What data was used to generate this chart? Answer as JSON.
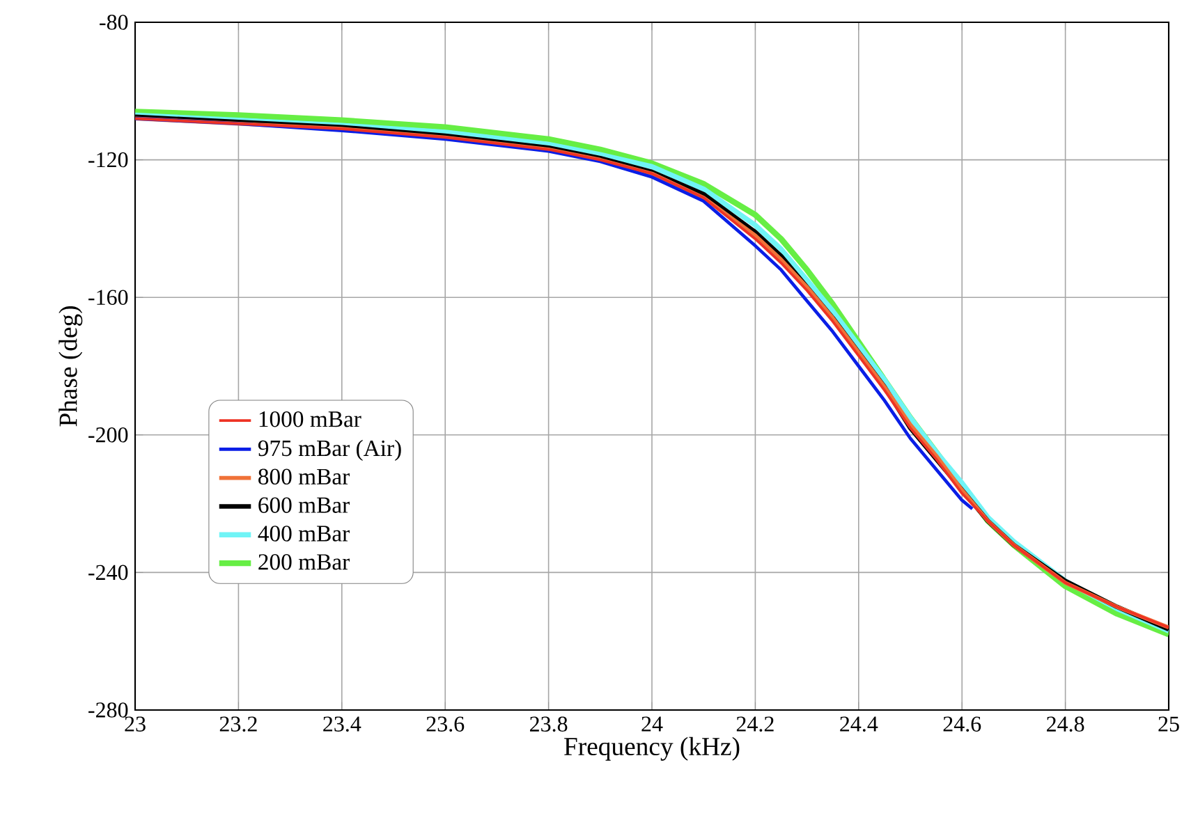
{
  "chart_data": {
    "type": "line",
    "xlabel": "Frequency (kHz)",
    "ylabel": "Phase (deg)",
    "xlim": [
      23,
      25
    ],
    "ylim": [
      -280,
      -80
    ],
    "xticks": [
      23,
      23.2,
      23.4,
      23.6,
      23.8,
      24,
      24.2,
      24.4,
      24.6,
      24.8,
      25
    ],
    "yticks": [
      -280,
      -240,
      -200,
      -160,
      -120,
      -80
    ],
    "grid": true,
    "legend": "bottom left",
    "line_style": "solid",
    "marker": "none",
    "series": [
      {
        "name": "1000 mBar",
        "color": "#ee3324",
        "x": [
          23,
          23.2,
          23.4,
          23.6,
          23.8,
          23.9,
          24.0,
          24.1,
          24.2,
          24.25,
          24.3,
          24.35,
          24.4,
          24.45,
          24.5,
          24.55,
          24.6,
          24.65,
          24.7,
          24.8,
          24.9,
          25
        ],
        "values": [
          -108,
          -109.5,
          -111,
          -113.5,
          -117,
          -120,
          -124,
          -131,
          -143,
          -150,
          -158,
          -167,
          -177,
          -187,
          -198,
          -207,
          -217,
          -225,
          -232,
          -243,
          -250,
          -256
        ]
      },
      {
        "name": "975 mBar (Air)",
        "color": "#0a1ee6",
        "x": [
          23,
          23.2,
          23.4,
          23.6,
          23.8,
          23.9,
          24.0,
          24.1,
          24.2,
          24.25,
          24.3,
          24.35,
          24.4,
          24.45,
          24.5,
          24.55,
          24.6,
          24.62
        ],
        "values": [
          -108,
          -109.5,
          -111.5,
          -114,
          -117.5,
          -120.5,
          -125,
          -132,
          -145,
          -152,
          -161,
          -170,
          -180,
          -190,
          -201,
          -210,
          -219,
          -221.5
        ]
      },
      {
        "name": "800 mBar",
        "color": "#f07238",
        "x": [
          23,
          23.2,
          23.4,
          23.6,
          23.8,
          23.9,
          24.0,
          24.1,
          24.2,
          24.25,
          24.3,
          24.35,
          24.4,
          24.45,
          24.5,
          24.55,
          24.6,
          24.65,
          24.7,
          24.8,
          24.9,
          25
        ],
        "values": [
          -108,
          -109.5,
          -111,
          -113.5,
          -117,
          -120,
          -124,
          -131,
          -142,
          -149,
          -157,
          -166,
          -176,
          -186,
          -197,
          -206,
          -216,
          -225,
          -232,
          -243,
          -250,
          -256
        ]
      },
      {
        "name": "600 mBar",
        "color": "#000000",
        "x": [
          23,
          23.2,
          23.4,
          23.6,
          23.8,
          23.9,
          24.0,
          24.1,
          24.2,
          24.25,
          24.3,
          24.35,
          24.4,
          24.45,
          24.5,
          24.55,
          24.6,
          24.65,
          24.7,
          24.8,
          24.9,
          25
        ],
        "values": [
          -107.5,
          -109,
          -110.5,
          -113,
          -116.5,
          -119.5,
          -123.5,
          -130,
          -141,
          -148,
          -157,
          -166,
          -176,
          -186,
          -198,
          -207,
          -216,
          -225,
          -232,
          -242.5,
          -250,
          -256.5
        ]
      },
      {
        "name": "400 mBar",
        "color": "#70f4f6",
        "x": [
          23,
          23.2,
          23.4,
          23.6,
          23.8,
          23.9,
          24.0,
          24.1,
          24.2,
          24.25,
          24.3,
          24.35,
          24.4,
          24.45,
          24.5,
          24.55,
          24.6,
          24.65,
          24.7,
          24.8,
          24.9,
          25
        ],
        "values": [
          -107,
          -108.5,
          -110,
          -112,
          -115.5,
          -118.5,
          -122,
          -128.5,
          -139,
          -146,
          -155,
          -164,
          -174,
          -184,
          -195,
          -205,
          -214,
          -224,
          -231,
          -242.5,
          -250.5,
          -257
        ]
      },
      {
        "name": "200 mBar",
        "color": "#66ee44",
        "x": [
          23,
          23.2,
          23.4,
          23.6,
          23.8,
          23.9,
          24.0,
          24.1,
          24.2,
          24.25,
          24.3,
          24.35,
          24.4,
          24.45,
          24.5,
          24.55,
          24.6,
          24.65,
          24.7,
          24.8,
          24.9,
          25
        ],
        "values": [
          -106,
          -107,
          -108.5,
          -110.5,
          -114,
          -117,
          -121,
          -127,
          -136,
          -143,
          -152,
          -162,
          -173,
          -184,
          -195,
          -205,
          -215,
          -225,
          -232,
          -244,
          -252,
          -258
        ]
      }
    ]
  }
}
